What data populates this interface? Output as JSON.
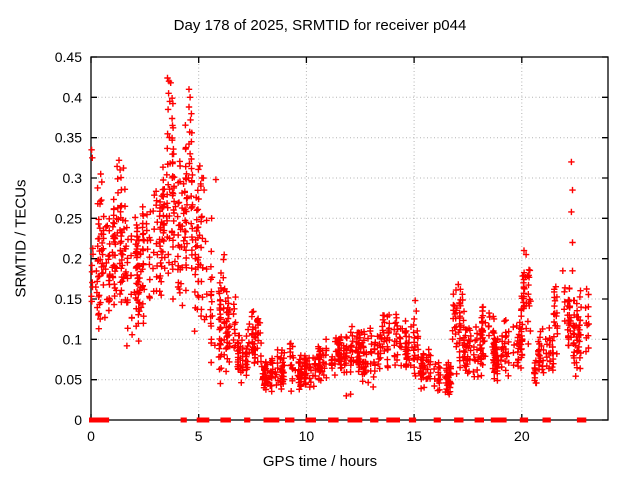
{
  "chart_data": {
    "type": "scatter",
    "title": "Day 178 of 2025, SRMTID for receiver p044",
    "xlabel": "GPS time / hours",
    "ylabel": "SRMTID / TECUs",
    "xlim": [
      0,
      24
    ],
    "ylim": [
      0,
      0.45
    ],
    "x_ticks": [
      0,
      5,
      10,
      15,
      20
    ],
    "x_tick_labels": [
      "0",
      "5",
      "10",
      "15",
      "20"
    ],
    "y_ticks": [
      0,
      0.05,
      0.1,
      0.15,
      0.2,
      0.25,
      0.3,
      0.35,
      0.4,
      0.45
    ],
    "y_tick_labels": [
      "0",
      "0.05",
      "0.1",
      "0.15",
      "0.2",
      "0.25",
      "0.3",
      "0.35",
      "0.4",
      "0.45"
    ],
    "grid": true,
    "legend": "none",
    "marker": "plus",
    "marker_color": "#ff0000",
    "grid_color": "#b3b3b3",
    "axis_color": "#000000",
    "background_color": "#ffffff",
    "random_seed": 17825,
    "notable_points": [
      [
        0.03,
        0.335
      ],
      [
        0.06,
        0.325
      ],
      [
        0.45,
        0.305
      ],
      [
        0.5,
        0.295
      ],
      [
        1.3,
        0.322
      ],
      [
        1.35,
        0.31
      ],
      [
        3.55,
        0.424
      ],
      [
        3.62,
        0.42
      ],
      [
        3.7,
        0.418
      ],
      [
        3.6,
        0.405
      ],
      [
        3.66,
        0.395
      ],
      [
        3.58,
        0.385
      ],
      [
        4.55,
        0.41
      ],
      [
        4.6,
        0.4
      ],
      [
        4.55,
        0.388
      ],
      [
        4.62,
        0.372
      ],
      [
        4.58,
        0.357
      ],
      [
        4.55,
        0.342
      ],
      [
        4.6,
        0.33
      ],
      [
        4.57,
        0.318
      ],
      [
        4.52,
        0.3
      ],
      [
        5.05,
        0.315
      ],
      [
        5.15,
        0.3
      ],
      [
        5.1,
        0.29
      ],
      [
        5.25,
        0.285
      ],
      [
        5.8,
        0.298
      ],
      [
        5.6,
        0.25
      ],
      [
        11.85,
        0.03
      ],
      [
        12.05,
        0.032
      ],
      [
        15.05,
        0.148
      ],
      [
        15.1,
        0.135
      ],
      [
        17.05,
        0.168
      ],
      [
        17.15,
        0.162
      ],
      [
        20.1,
        0.21
      ],
      [
        20.2,
        0.205
      ],
      [
        21.9,
        0.185
      ],
      [
        22.3,
        0.32
      ],
      [
        22.35,
        0.285
      ],
      [
        22.3,
        0.258
      ],
      [
        22.35,
        0.22
      ],
      [
        22.35,
        0.185
      ]
    ],
    "clusters": [
      {
        "x": [
          0.0,
          0.3
        ],
        "y": [
          0.14,
          0.22
        ],
        "n": 12
      },
      {
        "x": [
          0.3,
          0.7
        ],
        "y": [
          0.1,
          0.31
        ],
        "n": 45
      },
      {
        "x": [
          0.7,
          1.2
        ],
        "y": [
          0.12,
          0.29
        ],
        "n": 50
      },
      {
        "x": [
          1.2,
          1.6
        ],
        "y": [
          0.13,
          0.325
        ],
        "n": 45
      },
      {
        "x": [
          1.6,
          2.2
        ],
        "y": [
          0.09,
          0.27
        ],
        "n": 55
      },
      {
        "x": [
          2.2,
          2.8
        ],
        "y": [
          0.1,
          0.28
        ],
        "n": 50
      },
      {
        "x": [
          2.8,
          3.4
        ],
        "y": [
          0.13,
          0.32
        ],
        "n": 55
      },
      {
        "x": [
          3.4,
          3.8
        ],
        "y": [
          0.15,
          0.42
        ],
        "n": 40
      },
      {
        "x": [
          3.8,
          4.3
        ],
        "y": [
          0.12,
          0.35
        ],
        "n": 45
      },
      {
        "x": [
          4.3,
          4.8
        ],
        "y": [
          0.1,
          0.4
        ],
        "n": 45
      },
      {
        "x": [
          4.8,
          5.5
        ],
        "y": [
          0.08,
          0.33
        ],
        "n": 50
      },
      {
        "x": [
          5.5,
          6.2
        ],
        "y": [
          0.03,
          0.22
        ],
        "n": 55
      },
      {
        "x": [
          6.2,
          6.7
        ],
        "y": [
          0.06,
          0.165
        ],
        "n": 40
      },
      {
        "x": [
          6.7,
          7.3
        ],
        "y": [
          0.045,
          0.11
        ],
        "n": 45
      },
      {
        "x": [
          7.3,
          7.9
        ],
        "y": [
          0.06,
          0.14
        ],
        "n": 45
      },
      {
        "x": [
          7.9,
          8.6
        ],
        "y": [
          0.03,
          0.085
        ],
        "n": 50
      },
      {
        "x": [
          8.6,
          9.4
        ],
        "y": [
          0.035,
          0.1
        ],
        "n": 50
      },
      {
        "x": [
          9.4,
          10.4
        ],
        "y": [
          0.035,
          0.085
        ],
        "n": 60
      },
      {
        "x": [
          10.4,
          11.2
        ],
        "y": [
          0.045,
          0.1
        ],
        "n": 55
      },
      {
        "x": [
          11.2,
          12.0
        ],
        "y": [
          0.045,
          0.115
        ],
        "n": 55
      },
      {
        "x": [
          12.0,
          12.6
        ],
        "y": [
          0.055,
          0.12
        ],
        "n": 45
      },
      {
        "x": [
          12.6,
          13.3
        ],
        "y": [
          0.04,
          0.12
        ],
        "n": 45
      },
      {
        "x": [
          13.3,
          14.4
        ],
        "y": [
          0.055,
          0.135
        ],
        "n": 65
      },
      {
        "x": [
          14.4,
          15.3
        ],
        "y": [
          0.045,
          0.14
        ],
        "n": 55
      },
      {
        "x": [
          15.3,
          16.0
        ],
        "y": [
          0.035,
          0.09
        ],
        "n": 45
      },
      {
        "x": [
          16.0,
          16.7
        ],
        "y": [
          0.025,
          0.075
        ],
        "n": 45
      },
      {
        "x": [
          16.7,
          17.35
        ],
        "y": [
          0.05,
          0.17
        ],
        "n": 50
      },
      {
        "x": [
          17.35,
          18.1
        ],
        "y": [
          0.045,
          0.125
        ],
        "n": 50
      },
      {
        "x": [
          18.1,
          18.7
        ],
        "y": [
          0.06,
          0.15
        ],
        "n": 45
      },
      {
        "x": [
          18.7,
          19.6
        ],
        "y": [
          0.04,
          0.125
        ],
        "n": 55
      },
      {
        "x": [
          19.6,
          20.0
        ],
        "y": [
          0.06,
          0.135
        ],
        "n": 30
      },
      {
        "x": [
          20.0,
          20.45
        ],
        "y": [
          0.09,
          0.21
        ],
        "n": 40
      },
      {
        "x": [
          20.3,
          20.7
        ],
        "y": [
          0.035,
          0.085
        ],
        "n": 12
      },
      {
        "x": [
          20.7,
          21.5
        ],
        "y": [
          0.05,
          0.12
        ],
        "n": 45
      },
      {
        "x": [
          21.5,
          22.3
        ],
        "y": [
          0.07,
          0.19
        ],
        "n": 50
      },
      {
        "x": [
          22.4,
          23.25
        ],
        "y": [
          0.045,
          0.165
        ],
        "n": 60
      }
    ],
    "zero_segments": [
      [
        0.0,
        0.25
      ],
      [
        0.35,
        0.75
      ],
      [
        4.25,
        4.35
      ],
      [
        5.0,
        5.4
      ],
      [
        6.1,
        6.4
      ],
      [
        7.2,
        7.3
      ],
      [
        8.1,
        8.65
      ],
      [
        9.1,
        9.35
      ],
      [
        10.05,
        10.35
      ],
      [
        11.1,
        11.4
      ],
      [
        12.0,
        12.5
      ],
      [
        13.05,
        13.25
      ],
      [
        13.8,
        14.25
      ],
      [
        14.85,
        15.0
      ],
      [
        16.0,
        16.15
      ],
      [
        16.95,
        17.2
      ],
      [
        17.9,
        18.15
      ],
      [
        18.65,
        18.8
      ],
      [
        18.9,
        19.2
      ],
      [
        20.0,
        20.2
      ],
      [
        21.05,
        21.25
      ],
      [
        22.65,
        22.9
      ]
    ]
  }
}
